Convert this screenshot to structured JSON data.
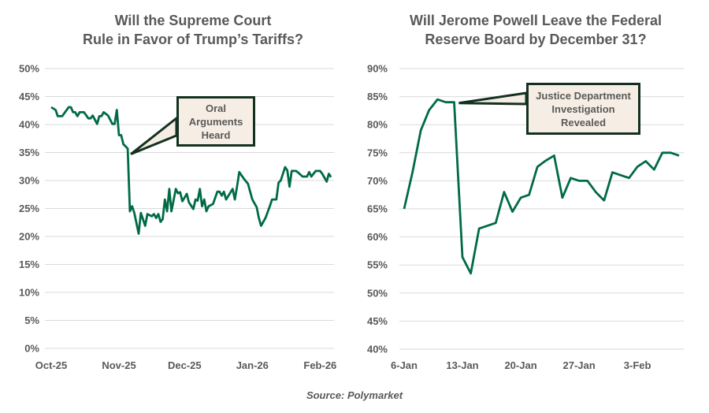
{
  "colors": {
    "line": "#006b45",
    "grid": "#d9d9d9",
    "text": "#595959",
    "callout_fill": "#f6eee5",
    "callout_border": "#14301f"
  },
  "source": "Source: Polymarket",
  "chart_data": [
    {
      "type": "line",
      "title": "Will the Supreme Court Rule in Favor of Trump’s Tariffs?",
      "title_lines": [
        "Will the Supreme Court",
        "Rule in Favor of Trump’s Tariffs?"
      ],
      "xlabel": "",
      "ylabel": "",
      "ylim": [
        0,
        50
      ],
      "y_ticks": [
        "0%",
        "5%",
        "10%",
        "15%",
        "20%",
        "25%",
        "30%",
        "35%",
        "40%",
        "45%",
        "50%"
      ],
      "x_ticks": [
        {
          "date": "2025-10-01",
          "label": "Oct-25"
        },
        {
          "date": "2025-11-01",
          "label": "Nov-25"
        },
        {
          "date": "2025-12-01",
          "label": "Dec-25"
        },
        {
          "date": "2026-01-01",
          "label": "Jan-26"
        },
        {
          "date": "2026-02-01",
          "label": "Feb-26"
        }
      ],
      "xlim": [
        "2025-10-01",
        "2026-02-07"
      ],
      "grid": true,
      "annotation": {
        "text": "Oral Arguments Heard",
        "lines": [
          "Oral",
          "Arguments",
          "Heard"
        ],
        "date": "2025-11-05",
        "value": 35.7
      },
      "x": [
        "2025-10-01",
        "2025-10-03",
        "2025-10-04",
        "2025-10-06",
        "2025-10-09",
        "2025-10-10",
        "2025-10-11",
        "2025-10-12",
        "2025-10-13",
        "2025-10-14",
        "2025-10-16",
        "2025-10-18",
        "2025-10-19",
        "2025-10-20",
        "2025-10-22",
        "2025-10-23",
        "2025-10-24",
        "2025-10-25",
        "2025-10-27",
        "2025-10-29",
        "2025-10-30",
        "2025-10-31",
        "2025-11-01",
        "2025-11-02",
        "2025-11-03",
        "2025-11-05",
        "2025-11-06",
        "2025-11-07",
        "2025-11-08",
        "2025-11-10",
        "2025-11-11",
        "2025-11-13",
        "2025-11-14",
        "2025-11-15",
        "2025-11-16",
        "2025-11-17",
        "2025-11-18",
        "2025-11-19",
        "2025-11-20",
        "2025-11-21",
        "2025-11-22",
        "2025-11-23",
        "2025-11-24",
        "2025-11-25",
        "2025-11-27",
        "2025-11-28",
        "2025-11-29",
        "2025-11-30",
        "2025-12-02",
        "2025-12-03",
        "2025-12-05",
        "2025-12-06",
        "2025-12-07",
        "2025-12-08",
        "2025-12-09",
        "2025-12-10",
        "2025-12-11",
        "2025-12-12",
        "2025-12-14",
        "2025-12-16",
        "2025-12-17",
        "2025-12-18",
        "2025-12-19",
        "2025-12-20",
        "2025-12-23",
        "2025-12-24",
        "2025-12-25",
        "2025-12-26",
        "2025-12-28",
        "2025-12-30",
        "2026-01-01",
        "2026-01-03",
        "2026-01-04",
        "2026-01-05",
        "2026-01-07",
        "2026-01-09",
        "2026-01-10",
        "2026-01-12",
        "2026-01-13",
        "2026-01-14",
        "2026-01-16",
        "2026-01-17",
        "2026-01-18",
        "2026-01-19",
        "2026-01-21",
        "2026-01-22",
        "2026-01-24",
        "2026-01-26",
        "2026-01-27",
        "2026-01-28",
        "2026-01-30",
        "2026-02-01",
        "2026-02-02",
        "2026-02-04",
        "2026-02-05",
        "2026-02-06"
      ],
      "values": [
        43.1,
        42.6,
        41.5,
        41.5,
        43.1,
        43.1,
        42.2,
        42.2,
        41.5,
        42.2,
        42.2,
        41.1,
        41.1,
        41.6,
        40.1,
        41.5,
        41.5,
        42.2,
        41.6,
        40.1,
        40.1,
        42.6,
        38.1,
        38.1,
        36.5,
        35.7,
        24.5,
        25.4,
        24.2,
        20.5,
        24.2,
        21.9,
        24.0,
        23.8,
        23.6,
        24.0,
        23.3,
        24.0,
        22.6,
        23.1,
        26.6,
        24.5,
        28.5,
        24.5,
        28.5,
        27.7,
        27.9,
        26.3,
        27.6,
        26.1,
        24.9,
        26.6,
        26.4,
        28.5,
        25.4,
        26.6,
        24.5,
        25.4,
        25.8,
        28.0,
        28.0,
        27.3,
        28.0,
        26.6,
        28.5,
        26.6,
        28.9,
        31.5,
        30.4,
        29.4,
        26.6,
        25.2,
        23.3,
        21.9,
        23.3,
        25.4,
        26.6,
        26.6,
        29.6,
        30.0,
        32.4,
        31.8,
        28.9,
        31.7,
        31.7,
        31.4,
        30.7,
        30.7,
        31.5,
        30.7,
        31.7,
        31.7,
        31.2,
        29.8,
        31.2,
        30.6
      ]
    },
    {
      "type": "line",
      "title": "Will Jerome Powell Leave the Federal Reserve Board by December 31?",
      "title_lines": [
        "Will Jerome Powell Leave the Federal",
        "Reserve Board by December 31?"
      ],
      "xlabel": "",
      "ylabel": "",
      "ylim": [
        40,
        90
      ],
      "y_ticks": [
        "40%",
        "45%",
        "50%",
        "55%",
        "60%",
        "65%",
        "70%",
        "75%",
        "80%",
        "85%",
        "90%"
      ],
      "x_ticks": [
        {
          "date": "2026-01-06",
          "label": "6-Jan"
        },
        {
          "date": "2026-01-13",
          "label": "13-Jan"
        },
        {
          "date": "2026-01-20",
          "label": "20-Jan"
        },
        {
          "date": "2026-01-27",
          "label": "27-Jan"
        },
        {
          "date": "2026-02-03",
          "label": "3-Feb"
        }
      ],
      "xlim": [
        "2026-01-06",
        "2026-02-08"
      ],
      "grid": true,
      "annotation": {
        "text": "Justice Department Investigation Revealed",
        "lines": [
          "Justice Department",
          "Investigation",
          "Revealed"
        ],
        "date": "2026-01-12",
        "value": 84
      },
      "x": [
        "2026-01-06",
        "2026-01-07",
        "2026-01-08",
        "2026-01-09",
        "2026-01-10",
        "2026-01-11",
        "2026-01-12",
        "2026-01-13",
        "2026-01-14",
        "2026-01-15",
        "2026-01-16",
        "2026-01-17",
        "2026-01-18",
        "2026-01-19",
        "2026-01-20",
        "2026-01-21",
        "2026-01-22",
        "2026-01-23",
        "2026-01-24",
        "2026-01-25",
        "2026-01-26",
        "2026-01-27",
        "2026-01-28",
        "2026-01-29",
        "2026-01-30",
        "2026-01-31",
        "2026-02-01",
        "2026-02-02",
        "2026-02-03",
        "2026-02-04",
        "2026-02-05",
        "2026-02-06",
        "2026-02-07",
        "2026-02-08"
      ],
      "values": [
        65,
        71.5,
        79,
        82.6,
        84.5,
        84,
        84,
        56.4,
        53.5,
        61.5,
        62,
        62.5,
        68,
        64.5,
        67,
        67.5,
        72.5,
        73.6,
        74.5,
        67,
        70.5,
        70,
        70,
        68,
        66.5,
        71.5,
        71,
        70.5,
        72.5,
        73.5,
        72,
        75,
        75,
        74.5
      ]
    }
  ]
}
